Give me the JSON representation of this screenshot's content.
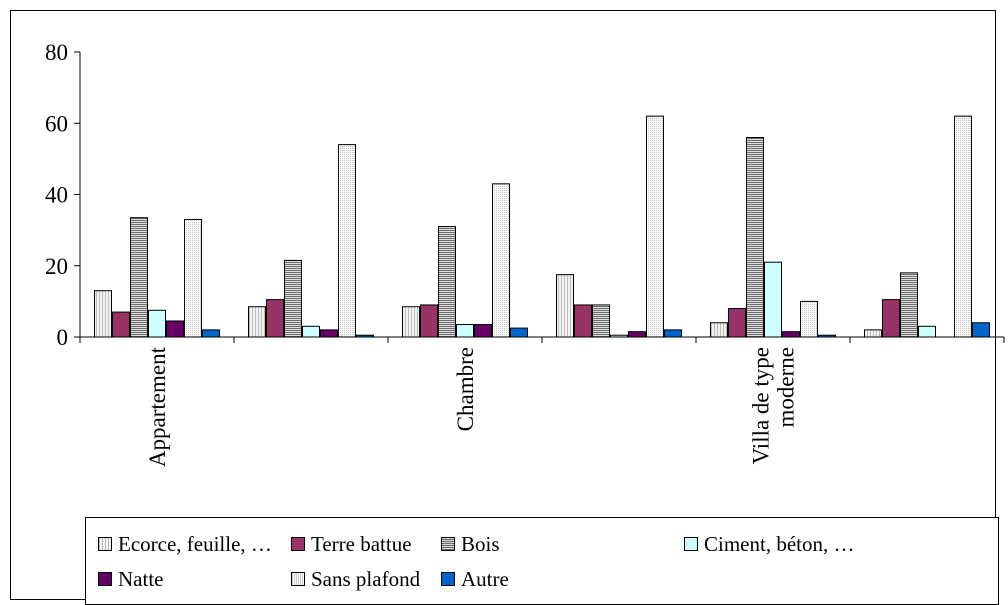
{
  "chart_data": {
    "type": "bar",
    "categories": [
      "Appartement",
      "",
      "Chambre",
      "",
      "Villa de type moderne",
      ""
    ],
    "series": [
      {
        "name": "Ecorce, feuille, …",
        "values": [
          13,
          8.5,
          8.5,
          17.5,
          4,
          2
        ],
        "color": "#f2f2f2",
        "pattern": "pattern-light"
      },
      {
        "name": "Terre battue",
        "values": [
          7,
          10.5,
          9,
          9,
          8,
          10.5
        ],
        "color": "#993366",
        "pattern": ""
      },
      {
        "name": "Bois",
        "values": [
          33.5,
          21.5,
          31,
          9,
          56,
          18
        ],
        "color": "#d4d4d4",
        "pattern": "pattern-hatch"
      },
      {
        "name": "Ciment, béton, …",
        "values": [
          7.5,
          3,
          3.5,
          0.5,
          21,
          3
        ],
        "color": "#ccffff",
        "pattern": ""
      },
      {
        "name": "Natte",
        "values": [
          4.5,
          2,
          3.5,
          1.5,
          1.5,
          0
        ],
        "color": "#660066",
        "pattern": ""
      },
      {
        "name": "Sans plafond",
        "values": [
          33,
          54,
          43,
          62,
          10,
          62
        ],
        "color": "#fafafa",
        "pattern": "pattern-dotted"
      },
      {
        "name": "Autre",
        "values": [
          2,
          0.5,
          2.5,
          2,
          0.5,
          4
        ],
        "color": "#0066cc",
        "pattern": ""
      }
    ],
    "title": "",
    "xlabel": "",
    "ylabel": "",
    "ylim": [
      0,
      80
    ],
    "yticks": [
      "0",
      "20",
      "40",
      "60",
      "80"
    ],
    "grid": false,
    "legend_position": "bottom"
  }
}
